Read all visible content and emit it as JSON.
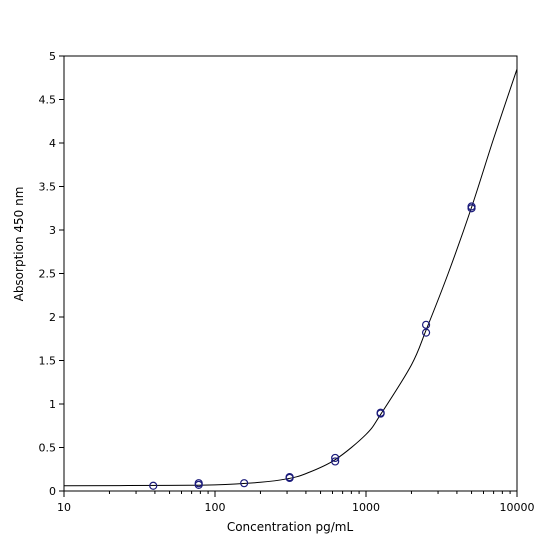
{
  "chart_data": {
    "type": "scatter",
    "title": "",
    "xlabel": "Concentration pg/mL",
    "ylabel": "Absorption 450 nm",
    "x_scale": "log",
    "xlim": [
      10,
      10000
    ],
    "ylim": [
      0,
      5
    ],
    "x_ticks": [
      10,
      100,
      1000,
      10000
    ],
    "x_tick_labels": [
      "10",
      "100",
      "1000",
      "10000"
    ],
    "y_ticks": [
      0,
      0.5,
      1,
      1.5,
      2,
      2.5,
      3,
      3.5,
      4,
      4.5,
      5
    ],
    "y_tick_labels": [
      "0",
      "0.5",
      "1",
      "1.5",
      "2",
      "2.5",
      "3",
      "3.5",
      "4",
      "4.5",
      "5"
    ],
    "grid": false,
    "legend": "none",
    "series": [
      {
        "kind": "points",
        "marker": "open-circle",
        "color": "#1a1a7a",
        "points": [
          {
            "x": 39,
            "y": 0.06
          },
          {
            "x": 78,
            "y": 0.07
          },
          {
            "x": 78,
            "y": 0.09
          },
          {
            "x": 156,
            "y": 0.09
          },
          {
            "x": 312,
            "y": 0.15
          },
          {
            "x": 312,
            "y": 0.16
          },
          {
            "x": 625,
            "y": 0.34
          },
          {
            "x": 625,
            "y": 0.38
          },
          {
            "x": 1250,
            "y": 0.89
          },
          {
            "x": 1250,
            "y": 0.9
          },
          {
            "x": 2500,
            "y": 1.82
          },
          {
            "x": 2500,
            "y": 1.91
          },
          {
            "x": 5000,
            "y": 3.25
          },
          {
            "x": 5000,
            "y": 3.27
          }
        ]
      },
      {
        "kind": "curve",
        "color": "#000000",
        "points": [
          {
            "x": 10,
            "y": 0.06
          },
          {
            "x": 50,
            "y": 0.065
          },
          {
            "x": 100,
            "y": 0.07
          },
          {
            "x": 200,
            "y": 0.1
          },
          {
            "x": 300,
            "y": 0.14
          },
          {
            "x": 400,
            "y": 0.2
          },
          {
            "x": 625,
            "y": 0.36
          },
          {
            "x": 1000,
            "y": 0.65
          },
          {
            "x": 1250,
            "y": 0.88
          },
          {
            "x": 2000,
            "y": 1.45
          },
          {
            "x": 2500,
            "y": 1.85
          },
          {
            "x": 3500,
            "y": 2.5
          },
          {
            "x": 5000,
            "y": 3.26
          },
          {
            "x": 7000,
            "y": 4.05
          },
          {
            "x": 10000,
            "y": 4.85
          }
        ]
      }
    ]
  }
}
